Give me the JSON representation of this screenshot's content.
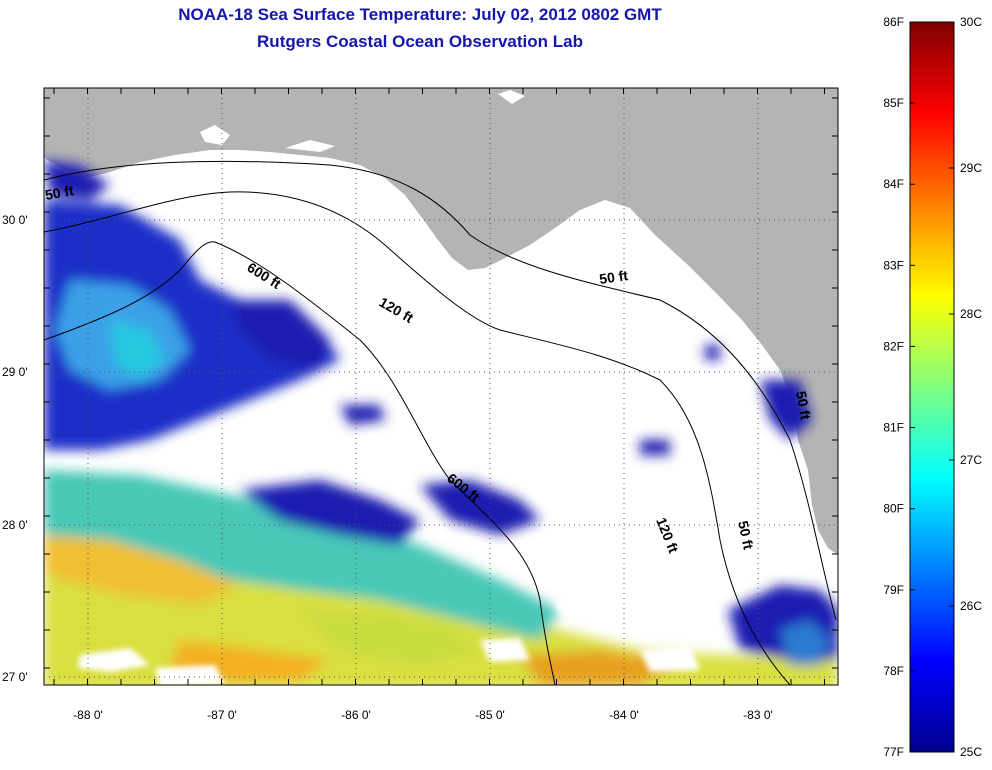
{
  "header": {
    "title": "NOAA-18 Sea Surface Temperature:  July 02, 2012 0802 GMT",
    "subtitle": "Rutgers Coastal Ocean Observation Lab"
  },
  "map": {
    "lat_labels": [
      "30 0'",
      "29 0'",
      "28 0'",
      "27 0'"
    ],
    "lon_labels": [
      "-88 0'",
      "-87 0'",
      "-86 0'",
      "-85 0'",
      "-84 0'",
      "-83 0'"
    ],
    "isobath_labels": [
      "50 ft",
      "600 ft",
      "120 ft",
      "50 ft",
      "600 ft",
      "120 ft",
      "50 ft",
      "50 ft"
    ],
    "colors": {
      "land": "#b4b4b4",
      "ocean_nodata": "#ffffff",
      "grid": "#555555"
    }
  },
  "colorbar": {
    "fahrenheit_labels": [
      "86F",
      "85F",
      "84F",
      "83F",
      "82F",
      "81F",
      "80F",
      "79F",
      "78F",
      "77F"
    ],
    "celsius_labels": [
      "30C",
      "29C",
      "28C",
      "27C",
      "26C",
      "25C"
    ],
    "range_celsius": [
      25,
      30
    ],
    "colormap": "jet"
  }
}
